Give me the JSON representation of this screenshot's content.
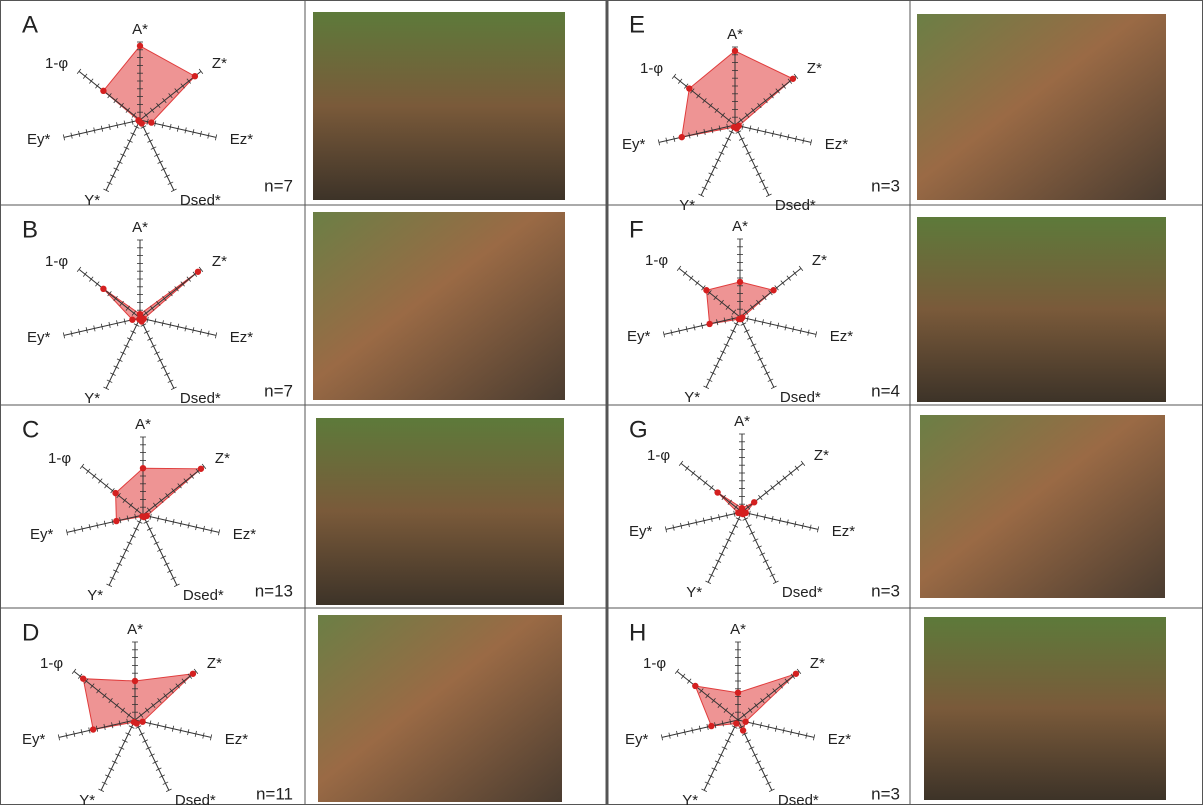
{
  "chart_data": [
    {
      "type": "radar",
      "panel": "A",
      "n": "n=7",
      "axes": [
        "A*",
        "Z*",
        "Ez*",
        "Dsed*",
        "Y*",
        "Ey*",
        "1-φ"
      ],
      "values": [
        0.95,
        0.9,
        0.15,
        0.05,
        0.02,
        0.02,
        0.6
      ],
      "color": "#e03c3c",
      "rlim": [
        0,
        1
      ],
      "rticks": [
        0.1,
        0.2,
        0.3,
        0.4,
        0.5,
        0.6,
        0.7,
        0.8,
        0.9,
        1
      ]
    },
    {
      "type": "radar",
      "panel": "B",
      "n": "n=7",
      "axes": [
        "A*",
        "Z*",
        "Ez*",
        "Dsed*",
        "Y*",
        "Ey*",
        "1-φ"
      ],
      "values": [
        0.05,
        0.95,
        0.05,
        0.05,
        0.02,
        0.1,
        0.6
      ],
      "color": "#e03c3c",
      "rlim": [
        0,
        1
      ],
      "rticks": [
        0.1,
        0.2,
        0.3,
        0.4,
        0.5,
        0.6,
        0.7,
        0.8,
        0.9,
        1
      ]
    },
    {
      "type": "radar",
      "panel": "C",
      "n": "n=13",
      "axes": [
        "A*",
        "Z*",
        "Ez*",
        "Dsed*",
        "Y*",
        "Ey*",
        "1-φ"
      ],
      "values": [
        0.6,
        0.95,
        0.05,
        0.03,
        0.02,
        0.35,
        0.45
      ],
      "color": "#e03c3c",
      "rlim": [
        0,
        1
      ],
      "rticks": [
        0.1,
        0.2,
        0.3,
        0.4,
        0.5,
        0.6,
        0.7,
        0.8,
        0.9,
        1
      ]
    },
    {
      "type": "radar",
      "panel": "D",
      "n": "n=11",
      "axes": [
        "A*",
        "Z*",
        "Ez*",
        "Dsed*",
        "Y*",
        "Ey*",
        "1-φ"
      ],
      "values": [
        0.5,
        0.95,
        0.1,
        0.05,
        0.03,
        0.55,
        0.85
      ],
      "color": "#e03c3c",
      "rlim": [
        0,
        1
      ],
      "rticks": [
        0.1,
        0.2,
        0.3,
        0.4,
        0.5,
        0.6,
        0.7,
        0.8,
        0.9,
        1
      ]
    },
    {
      "type": "radar",
      "panel": "E",
      "n": "n=3",
      "axes": [
        "A*",
        "Z*",
        "Ez*",
        "Dsed*",
        "Y*",
        "Ey*",
        "1-φ"
      ],
      "values": [
        0.95,
        0.95,
        0.05,
        0.05,
        0.03,
        0.7,
        0.75
      ],
      "color": "#e03c3c",
      "rlim": [
        0,
        1
      ],
      "rticks": [
        0.1,
        0.2,
        0.3,
        0.4,
        0.5,
        0.6,
        0.7,
        0.8,
        0.9,
        1
      ]
    },
    {
      "type": "radar",
      "panel": "F",
      "n": "n=4",
      "axes": [
        "A*",
        "Z*",
        "Ez*",
        "Dsed*",
        "Y*",
        "Ey*",
        "1-φ"
      ],
      "values": [
        0.45,
        0.55,
        0.03,
        0.03,
        0.03,
        0.4,
        0.55
      ],
      "color": "#e03c3c",
      "rlim": [
        0,
        1
      ],
      "rticks": [
        0.1,
        0.2,
        0.3,
        0.4,
        0.5,
        0.6,
        0.7,
        0.8,
        0.9,
        1
      ]
    },
    {
      "type": "radar",
      "panel": "G",
      "n": "n=3",
      "axes": [
        "A*",
        "Z*",
        "Ez*",
        "Dsed*",
        "Y*",
        "Ey*",
        "1-φ"
      ],
      "values": [
        0.05,
        0.2,
        0.05,
        0.03,
        0.02,
        0.05,
        0.4
      ],
      "color": "#e03c3c",
      "rlim": [
        0,
        1
      ],
      "rticks": [
        0.1,
        0.2,
        0.3,
        0.4,
        0.5,
        0.6,
        0.7,
        0.8,
        0.9,
        1
      ]
    },
    {
      "type": "radar",
      "panel": "H",
      "n": "n=3",
      "axes": [
        "A*",
        "Z*",
        "Ez*",
        "Dsed*",
        "Y*",
        "Ey*",
        "1-φ"
      ],
      "values": [
        0.35,
        0.95,
        0.1,
        0.15,
        0.05,
        0.35,
        0.7
      ],
      "color": "#e03c3c",
      "rlim": [
        0,
        1
      ],
      "rticks": [
        0.1,
        0.2,
        0.3,
        0.4,
        0.5,
        0.6,
        0.7,
        0.8,
        0.9,
        1
      ]
    }
  ]
}
